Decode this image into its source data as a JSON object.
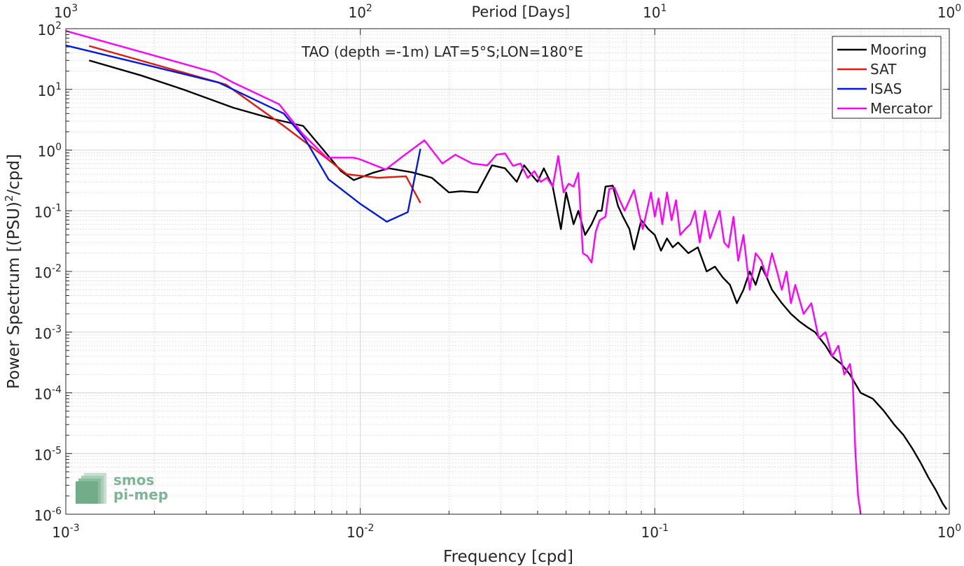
{
  "chart_data": {
    "type": "line",
    "title": "TAO (depth =-1m) LAT=5°S;LON=180°E",
    "xlabel": "Frequency [cpd]",
    "ylabel": "Power Spectrum [(PSU)",
    "ylabel_sup": "2",
    "ylabel_suffix": "/cpd]",
    "top_xlabel": "Period [Days]",
    "xscale": "log",
    "yscale": "log",
    "xlim": [
      0.001,
      1
    ],
    "ylim": [
      1e-06,
      100
    ],
    "grid": true,
    "legend_position": "top-right",
    "x_ticks": [
      {
        "base": "10",
        "exp": "-3"
      },
      {
        "base": "10",
        "exp": "-2"
      },
      {
        "base": "10",
        "exp": "-1"
      },
      {
        "base": "10",
        "exp": "0"
      }
    ],
    "y_ticks": [
      {
        "base": "10",
        "exp": "-6"
      },
      {
        "base": "10",
        "exp": "-5"
      },
      {
        "base": "10",
        "exp": "-4"
      },
      {
        "base": "10",
        "exp": "-3"
      },
      {
        "base": "10",
        "exp": "-2"
      },
      {
        "base": "10",
        "exp": "-1"
      },
      {
        "base": "10",
        "exp": "0"
      },
      {
        "base": "10",
        "exp": "1"
      },
      {
        "base": "10",
        "exp": "2"
      }
    ],
    "top_ticks": [
      {
        "base": "10",
        "exp": "3"
      },
      {
        "base": "10",
        "exp": "2"
      },
      {
        "base": "10",
        "exp": "1"
      },
      {
        "base": "10",
        "exp": "0"
      }
    ],
    "series": [
      {
        "name": "Mooring",
        "color": "#000000",
        "points": [
          [
            0.0012,
            30
          ],
          [
            0.0018,
            17
          ],
          [
            0.0025,
            10
          ],
          [
            0.0037,
            5
          ],
          [
            0.005,
            3.3
          ],
          [
            0.0064,
            2.5
          ],
          [
            0.0075,
            1.0
          ],
          [
            0.0086,
            0.45
          ],
          [
            0.0095,
            0.32
          ],
          [
            0.011,
            0.42
          ],
          [
            0.0125,
            0.5
          ],
          [
            0.015,
            0.43
          ],
          [
            0.0175,
            0.35
          ],
          [
            0.02,
            0.2
          ],
          [
            0.022,
            0.21
          ],
          [
            0.025,
            0.2
          ],
          [
            0.028,
            0.56
          ],
          [
            0.031,
            0.5
          ],
          [
            0.034,
            0.3
          ],
          [
            0.036,
            0.56
          ],
          [
            0.038,
            0.4
          ],
          [
            0.04,
            0.3
          ],
          [
            0.042,
            0.5
          ],
          [
            0.045,
            0.25
          ],
          [
            0.048,
            0.05
          ],
          [
            0.05,
            0.2
          ],
          [
            0.053,
            0.06
          ],
          [
            0.055,
            0.1
          ],
          [
            0.058,
            0.04
          ],
          [
            0.061,
            0.06
          ],
          [
            0.064,
            0.1
          ],
          [
            0.066,
            0.1
          ],
          [
            0.068,
            0.25
          ],
          [
            0.072,
            0.26
          ],
          [
            0.075,
            0.12
          ],
          [
            0.078,
            0.08
          ],
          [
            0.082,
            0.05
          ],
          [
            0.085,
            0.023
          ],
          [
            0.09,
            0.07
          ],
          [
            0.095,
            0.05
          ],
          [
            0.1,
            0.04
          ],
          [
            0.105,
            0.022
          ],
          [
            0.11,
            0.035
          ],
          [
            0.115,
            0.025
          ],
          [
            0.12,
            0.03
          ],
          [
            0.13,
            0.02
          ],
          [
            0.14,
            0.025
          ],
          [
            0.15,
            0.01
          ],
          [
            0.16,
            0.012
          ],
          [
            0.17,
            0.008
          ],
          [
            0.18,
            0.006
          ],
          [
            0.19,
            0.003
          ],
          [
            0.2,
            0.005
          ],
          [
            0.21,
            0.01
          ],
          [
            0.22,
            0.006
          ],
          [
            0.23,
            0.012
          ],
          [
            0.24,
            0.008
          ],
          [
            0.25,
            0.005
          ],
          [
            0.27,
            0.003
          ],
          [
            0.29,
            0.002
          ],
          [
            0.31,
            0.0015
          ],
          [
            0.33,
            0.0012
          ],
          [
            0.35,
            0.001
          ],
          [
            0.38,
            0.0006
          ],
          [
            0.4,
            0.0004
          ],
          [
            0.43,
            0.0003
          ],
          [
            0.46,
            0.0002
          ],
          [
            0.5,
            0.0001
          ],
          [
            0.55,
            8e-05
          ],
          [
            0.6,
            5e-05
          ],
          [
            0.65,
            3e-05
          ],
          [
            0.7,
            2e-05
          ],
          [
            0.75,
            1.2e-05
          ],
          [
            0.8,
            7e-06
          ],
          [
            0.85,
            4e-06
          ],
          [
            0.9,
            2.5e-06
          ],
          [
            0.95,
            1.5e-06
          ],
          [
            0.98,
            1.2e-06
          ]
        ]
      },
      {
        "name": "SAT",
        "color": "#e8170c",
        "points": [
          [
            0.0012,
            52
          ],
          [
            0.0035,
            12
          ],
          [
            0.0055,
            2.5
          ],
          [
            0.0075,
            0.8
          ],
          [
            0.009,
            0.4
          ],
          [
            0.0115,
            0.35
          ],
          [
            0.0143,
            0.37
          ],
          [
            0.016,
            0.135
          ]
        ]
      },
      {
        "name": "ISAS",
        "color": "#0019e6",
        "points": [
          [
            0.001,
            53
          ],
          [
            0.0033,
            13
          ],
          [
            0.0055,
            4.0
          ],
          [
            0.0065,
            1.5
          ],
          [
            0.0078,
            0.33
          ],
          [
            0.01,
            0.13
          ],
          [
            0.0123,
            0.066
          ],
          [
            0.0145,
            0.095
          ],
          [
            0.016,
            1.05
          ]
        ]
      },
      {
        "name": "Mercator",
        "color": "#ff00ff",
        "points": [
          [
            0.001,
            92
          ],
          [
            0.0032,
            19
          ],
          [
            0.0037,
            13
          ],
          [
            0.0053,
            5.7
          ],
          [
            0.0064,
            1.8
          ],
          [
            0.0077,
            0.75
          ],
          [
            0.0095,
            0.75
          ],
          [
            0.01,
            0.7
          ],
          [
            0.0122,
            0.48
          ],
          [
            0.014,
            0.8
          ],
          [
            0.0165,
            1.45
          ],
          [
            0.019,
            0.6
          ],
          [
            0.021,
            0.84
          ],
          [
            0.024,
            0.6
          ],
          [
            0.027,
            0.56
          ],
          [
            0.029,
            0.84
          ],
          [
            0.031,
            0.88
          ],
          [
            0.033,
            0.55
          ],
          [
            0.035,
            0.6
          ],
          [
            0.037,
            0.35
          ],
          [
            0.039,
            0.45
          ],
          [
            0.041,
            0.3
          ],
          [
            0.043,
            0.35
          ],
          [
            0.045,
            0.25
          ],
          [
            0.047,
            0.8
          ],
          [
            0.049,
            0.2
          ],
          [
            0.051,
            0.28
          ],
          [
            0.053,
            0.25
          ],
          [
            0.055,
            0.42
          ],
          [
            0.057,
            0.02
          ],
          [
            0.059,
            0.018
          ],
          [
            0.061,
            0.014
          ],
          [
            0.063,
            0.045
          ],
          [
            0.065,
            0.07
          ],
          [
            0.068,
            0.08
          ],
          [
            0.07,
            0.23
          ],
          [
            0.073,
            0.24
          ],
          [
            0.076,
            0.15
          ],
          [
            0.079,
            0.1
          ],
          [
            0.082,
            0.15
          ],
          [
            0.085,
            0.22
          ],
          [
            0.088,
            0.1
          ],
          [
            0.091,
            0.05
          ],
          [
            0.094,
            0.1
          ],
          [
            0.097,
            0.2
          ],
          [
            0.1,
            0.08
          ],
          [
            0.103,
            0.16
          ],
          [
            0.106,
            0.06
          ],
          [
            0.11,
            0.2
          ],
          [
            0.114,
            0.07
          ],
          [
            0.118,
            0.15
          ],
          [
            0.122,
            0.04
          ],
          [
            0.127,
            0.05
          ],
          [
            0.132,
            0.06
          ],
          [
            0.137,
            0.1
          ],
          [
            0.142,
            0.03
          ],
          [
            0.148,
            0.1
          ],
          [
            0.154,
            0.035
          ],
          [
            0.16,
            0.06
          ],
          [
            0.166,
            0.1
          ],
          [
            0.172,
            0.03
          ],
          [
            0.178,
            0.025
          ],
          [
            0.185,
            0.08
          ],
          [
            0.192,
            0.015
          ],
          [
            0.2,
            0.04
          ],
          [
            0.21,
            0.005
          ],
          [
            0.22,
            0.02
          ],
          [
            0.23,
            0.015
          ],
          [
            0.24,
            0.008
          ],
          [
            0.25,
            0.02
          ],
          [
            0.26,
            0.01
          ],
          [
            0.27,
            0.005
          ],
          [
            0.28,
            0.01
          ],
          [
            0.29,
            0.003
          ],
          [
            0.3,
            0.006
          ],
          [
            0.32,
            0.002
          ],
          [
            0.34,
            0.003
          ],
          [
            0.36,
            0.0008
          ],
          [
            0.38,
            0.001
          ],
          [
            0.4,
            0.0004
          ],
          [
            0.42,
            0.0006
          ],
          [
            0.44,
            0.0002
          ],
          [
            0.46,
            0.0003
          ],
          [
            0.47,
            0.00015
          ],
          [
            0.48,
            1e-05
          ],
          [
            0.49,
            2e-06
          ],
          [
            0.5,
            1e-06
          ]
        ]
      }
    ]
  },
  "logo": {
    "line1": "smos",
    "line2": "pi-mep"
  }
}
